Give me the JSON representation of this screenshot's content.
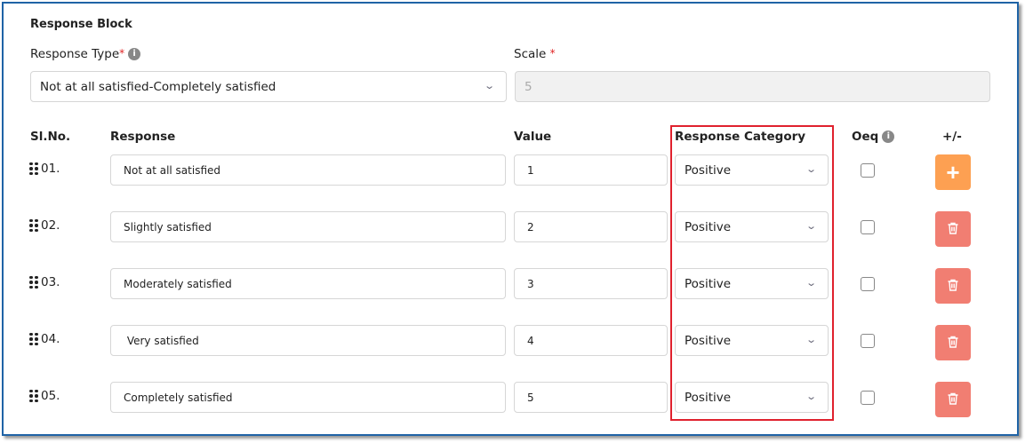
{
  "title": "Response Block",
  "response_type": {
    "label": "Response Type",
    "required_mark": "*",
    "value": "Not at all satisfied-Completely satisfied"
  },
  "scale": {
    "label": "Scale",
    "required_mark": "*",
    "value": "5"
  },
  "headers": {
    "sl": "Sl.No.",
    "response": "Response",
    "value": "Value",
    "category": "Response Category",
    "oeq": "Oeq",
    "plusminus": "+/-"
  },
  "rows": [
    {
      "sl": "01.",
      "response": "Not at all satisfied",
      "value": "1",
      "category": "Positive",
      "oeq": false,
      "action": "add"
    },
    {
      "sl": "02.",
      "response": "Slightly satisfied",
      "value": "2",
      "category": "Positive",
      "oeq": false,
      "action": "delete"
    },
    {
      "sl": "03.",
      "response": "Moderately satisfied",
      "value": "3",
      "category": "Positive",
      "oeq": false,
      "action": "delete"
    },
    {
      "sl": "04.",
      "response": " Very satisfied",
      "value": "4",
      "category": "Positive",
      "oeq": false,
      "action": "delete"
    },
    {
      "sl": "05.",
      "response": "Completely satisfied",
      "value": "5",
      "category": "Positive",
      "oeq": false,
      "action": "delete"
    }
  ],
  "colors": {
    "border": "#1f63a6",
    "highlight": "#e0212e",
    "add": "#fda052",
    "delete": "#f17e72"
  }
}
